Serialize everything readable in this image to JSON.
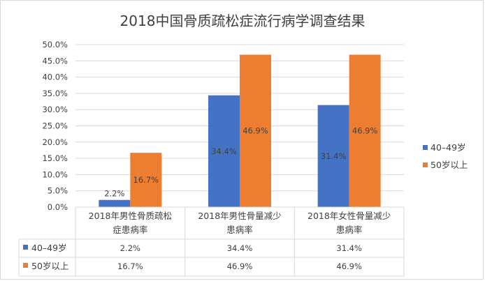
{
  "chart_data": {
    "type": "bar",
    "title": "2018中国骨质疏松症流行病学调查结果",
    "categories": [
      [
        "2018年男性骨质疏松",
        "症患病率"
      ],
      [
        "2018年男性骨量减少",
        "患病率"
      ],
      [
        "2018年女性骨量减少",
        "患病率"
      ]
    ],
    "series": [
      {
        "name": "40–49岁",
        "values": [
          2.2,
          34.4,
          31.4
        ],
        "labels": [
          "2.2%",
          "34.4%",
          "31.4%"
        ],
        "color": "#4472C4"
      },
      {
        "name": "50岁以上",
        "values": [
          16.7,
          46.9,
          46.9
        ],
        "labels": [
          "16.7%",
          "46.9%",
          "46.9%"
        ],
        "color": "#ED7D31"
      }
    ],
    "ylim": [
      0,
      50
    ],
    "yticks": [
      "0.0%",
      "5.0%",
      "10.0%",
      "15.0%",
      "20.0%",
      "25.0%",
      "30.0%",
      "35.0%",
      "40.0%",
      "45.0%",
      "50.0%"
    ],
    "grid": true,
    "legend_position": "right",
    "data_table": true,
    "gridline_color": "#d9d9d9"
  }
}
